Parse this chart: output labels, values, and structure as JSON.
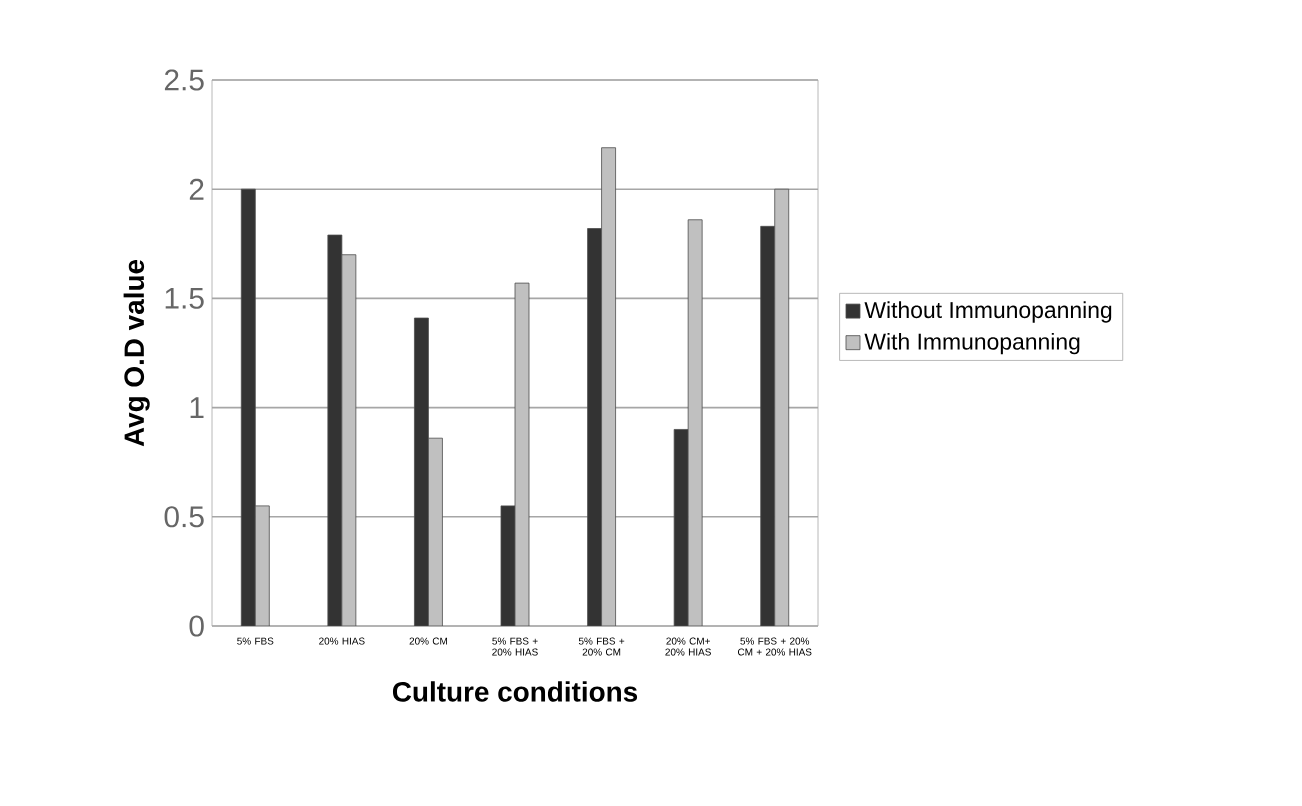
{
  "chart_data": {
    "type": "bar",
    "xlabel": "Culture conditions",
    "ylabel": "Avg O.D value",
    "categories": [
      "5% FBS",
      "20% HIAS",
      "20% CM",
      "5% FBS + 20% HIAS",
      "5% FBS + 20% CM",
      "20% CM+ 20% HIAS",
      "5% FBS + 20% CM + 20% HIAS"
    ],
    "series": [
      {
        "name": "Without Immunopanning",
        "color": "#333333",
        "values": [
          2.0,
          1.79,
          1.41,
          0.55,
          1.82,
          0.9,
          1.83
        ]
      },
      {
        "name": "With Immunopanning",
        "color": "#c0c0c0",
        "values": [
          0.55,
          1.7,
          0.86,
          1.57,
          2.19,
          1.86,
          2.0
        ]
      }
    ],
    "ylim": [
      0,
      2.5
    ],
    "yticks": [
      0,
      0.5,
      1,
      1.5,
      2,
      2.5
    ],
    "grid": "y",
    "legend": "right"
  }
}
